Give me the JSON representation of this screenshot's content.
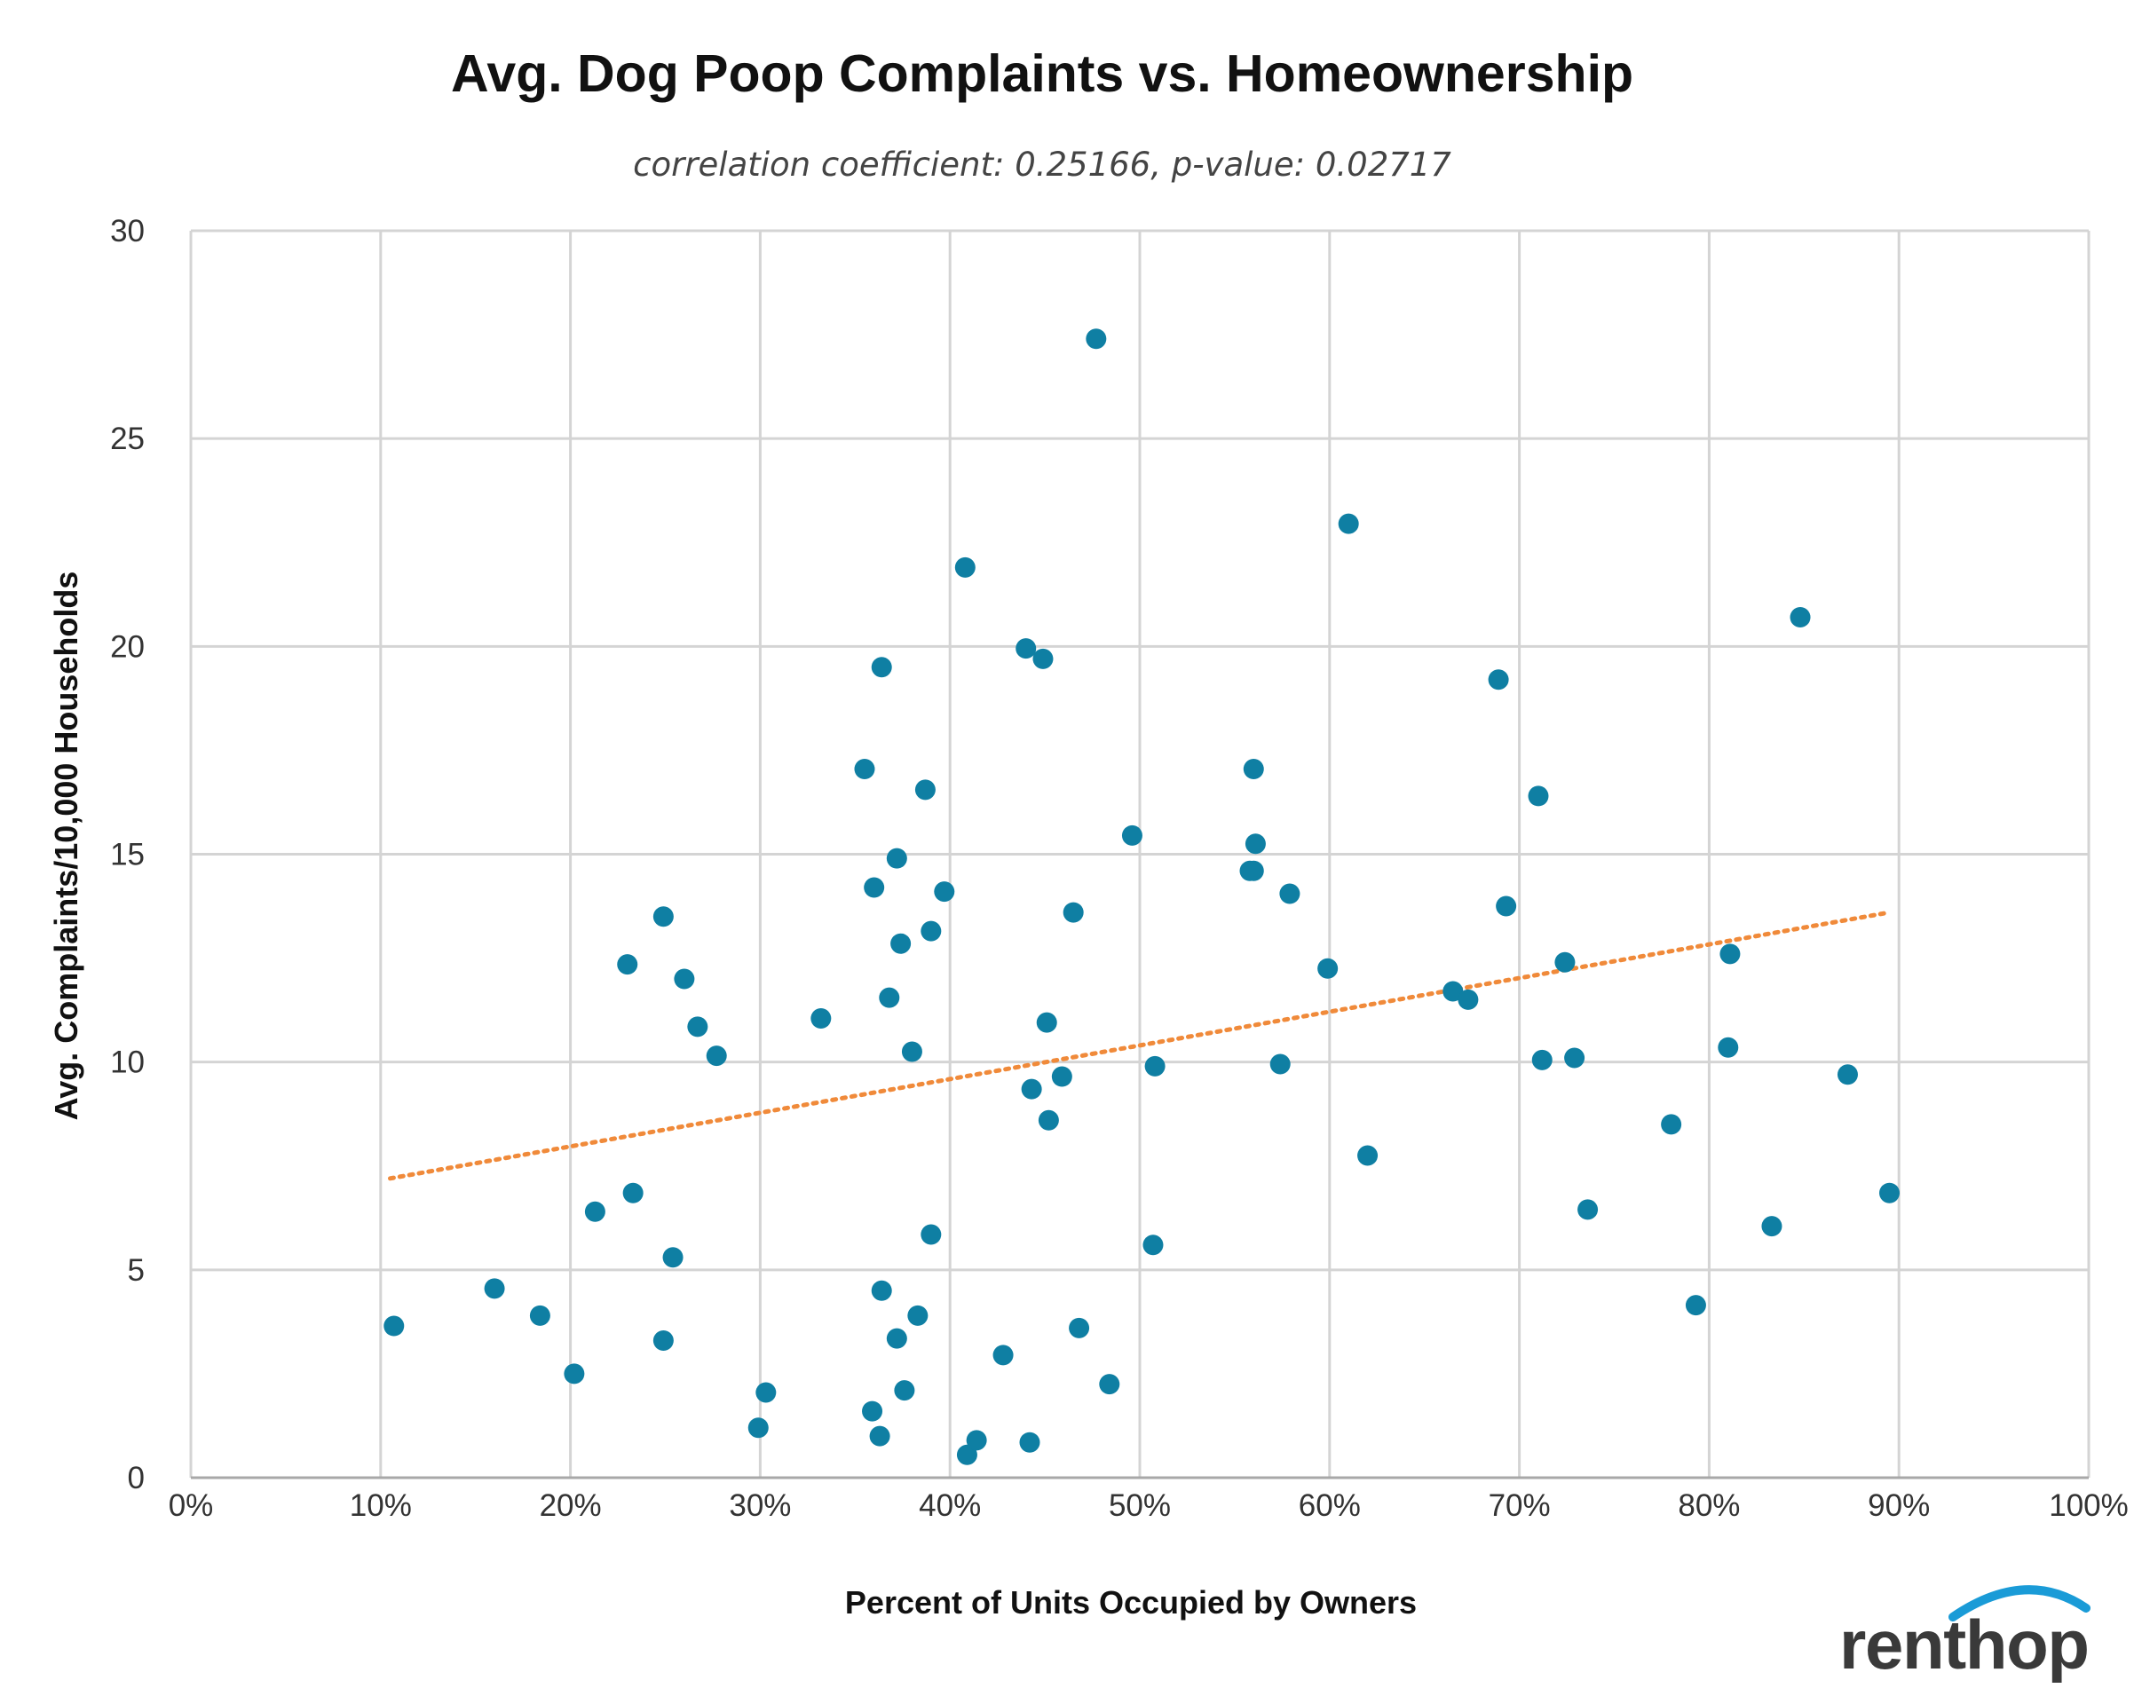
{
  "chart_data": {
    "type": "scatter",
    "title": "Avg. Dog Poop Complaints vs. Homeownership",
    "subtitle": "correlation coefficient: 0.25166, p-value: 0.02717",
    "xlabel": "Percent of Units Occupied by Owners",
    "ylabel": "Avg. Complaints/10,000 Households",
    "xlim": [
      0,
      100
    ],
    "ylim": [
      0,
      30
    ],
    "x_ticks": [
      "0%",
      "10%",
      "20%",
      "30%",
      "40%",
      "50%",
      "60%",
      "70%",
      "80%",
      "90%",
      "100%"
    ],
    "y_ticks": [
      "0",
      "5",
      "10",
      "15",
      "20",
      "25",
      "30"
    ],
    "grid": true,
    "point_color": "#0f7fa3",
    "trendline": {
      "style": "dotted",
      "color": "#f08a3a",
      "x": [
        10.5,
        89.5
      ],
      "y": [
        7.2,
        13.6
      ]
    },
    "points": [
      {
        "x": 10.7,
        "y": 3.65
      },
      {
        "x": 16.0,
        "y": 4.55
      },
      {
        "x": 18.4,
        "y": 3.9
      },
      {
        "x": 20.2,
        "y": 2.5
      },
      {
        "x": 21.3,
        "y": 6.4
      },
      {
        "x": 23.0,
        "y": 12.35
      },
      {
        "x": 23.3,
        "y": 6.85
      },
      {
        "x": 24.9,
        "y": 3.3
      },
      {
        "x": 24.9,
        "y": 13.5
      },
      {
        "x": 25.4,
        "y": 5.3
      },
      {
        "x": 26.0,
        "y": 12.0
      },
      {
        "x": 26.7,
        "y": 10.85
      },
      {
        "x": 27.7,
        "y": 10.15
      },
      {
        "x": 29.9,
        "y": 1.2
      },
      {
        "x": 30.3,
        "y": 2.05
      },
      {
        "x": 33.2,
        "y": 11.05
      },
      {
        "x": 35.5,
        "y": 17.05
      },
      {
        "x": 35.9,
        "y": 1.6
      },
      {
        "x": 36.0,
        "y": 14.2
      },
      {
        "x": 36.3,
        "y": 1.0
      },
      {
        "x": 36.4,
        "y": 19.5
      },
      {
        "x": 36.4,
        "y": 4.5
      },
      {
        "x": 36.8,
        "y": 11.55
      },
      {
        "x": 37.2,
        "y": 14.9
      },
      {
        "x": 37.2,
        "y": 3.35
      },
      {
        "x": 37.4,
        "y": 12.85
      },
      {
        "x": 37.6,
        "y": 2.1
      },
      {
        "x": 38.0,
        "y": 10.25
      },
      {
        "x": 38.3,
        "y": 3.9
      },
      {
        "x": 38.7,
        "y": 16.55
      },
      {
        "x": 39.0,
        "y": 13.15
      },
      {
        "x": 39.0,
        "y": 5.85
      },
      {
        "x": 39.7,
        "y": 14.1
      },
      {
        "x": 40.8,
        "y": 21.9
      },
      {
        "x": 40.9,
        "y": 0.55
      },
      {
        "x": 41.4,
        "y": 0.9
      },
      {
        "x": 42.8,
        "y": 2.95
      },
      {
        "x": 44.0,
        "y": 19.95
      },
      {
        "x": 44.2,
        "y": 0.85
      },
      {
        "x": 44.3,
        "y": 9.35
      },
      {
        "x": 44.9,
        "y": 19.7
      },
      {
        "x": 45.1,
        "y": 10.95
      },
      {
        "x": 45.2,
        "y": 8.6
      },
      {
        "x": 45.9,
        "y": 9.65
      },
      {
        "x": 46.5,
        "y": 13.6
      },
      {
        "x": 46.8,
        "y": 3.6
      },
      {
        "x": 47.7,
        "y": 27.4
      },
      {
        "x": 48.4,
        "y": 2.25
      },
      {
        "x": 49.6,
        "y": 15.45
      },
      {
        "x": 50.7,
        "y": 5.6
      },
      {
        "x": 50.8,
        "y": 9.9
      },
      {
        "x": 55.8,
        "y": 14.6
      },
      {
        "x": 56.0,
        "y": 17.05
      },
      {
        "x": 56.0,
        "y": 14.6
      },
      {
        "x": 56.1,
        "y": 15.25
      },
      {
        "x": 57.4,
        "y": 9.95
      },
      {
        "x": 57.9,
        "y": 14.05
      },
      {
        "x": 59.9,
        "y": 12.25
      },
      {
        "x": 61.0,
        "y": 22.95
      },
      {
        "x": 62.0,
        "y": 7.75
      },
      {
        "x": 66.5,
        "y": 11.7
      },
      {
        "x": 67.3,
        "y": 11.5
      },
      {
        "x": 68.9,
        "y": 19.2
      },
      {
        "x": 69.3,
        "y": 13.75
      },
      {
        "x": 71.0,
        "y": 16.4
      },
      {
        "x": 71.2,
        "y": 10.05
      },
      {
        "x": 72.4,
        "y": 12.4
      },
      {
        "x": 72.9,
        "y": 10.1
      },
      {
        "x": 73.6,
        "y": 6.45
      },
      {
        "x": 78.0,
        "y": 8.5
      },
      {
        "x": 79.3,
        "y": 4.15
      },
      {
        "x": 81.0,
        "y": 10.35
      },
      {
        "x": 81.1,
        "y": 12.6
      },
      {
        "x": 83.3,
        "y": 6.05
      },
      {
        "x": 84.8,
        "y": 20.7
      },
      {
        "x": 87.3,
        "y": 9.7
      },
      {
        "x": 89.5,
        "y": 6.85
      }
    ]
  },
  "logo": {
    "text": "renthop",
    "text_color": "#3a3a3a",
    "arc_color": "#1a9bd7"
  }
}
